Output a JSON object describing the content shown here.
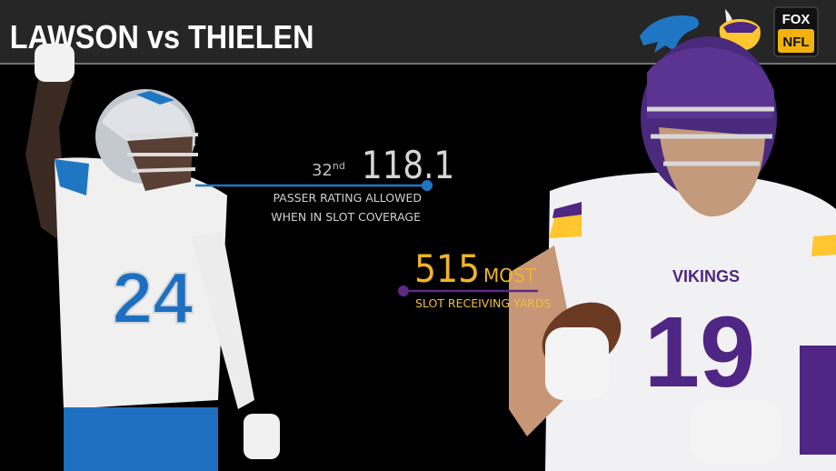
{
  "header": {
    "title": "LAWSON vs THIELEN"
  },
  "logos": {
    "network": "FOX",
    "league": "NFL"
  },
  "stats": [
    {
      "rank": 32,
      "rank_suffix": "nd",
      "value": 118.1,
      "label_lines": [
        "PASSER RATING ALLOWED",
        "WHEN IN SLOT COVERAGE"
      ]
    },
    {
      "value": 515,
      "qualifier": "MOST",
      "label_lines": [
        "SLOT RECEIVING YARDS"
      ]
    }
  ],
  "players": [
    {
      "number": "24"
    },
    {
      "number": "19"
    }
  ]
}
